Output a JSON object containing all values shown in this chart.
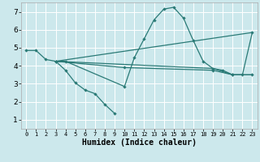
{
  "xlabel": "Humidex (Indice chaleur)",
  "bg_color": "#cce8ec",
  "grid_color": "#ffffff",
  "line_color": "#2a7a76",
  "xlim": [
    -0.5,
    23.5
  ],
  "ylim": [
    0.5,
    7.5
  ],
  "xticks": [
    0,
    1,
    2,
    3,
    4,
    5,
    6,
    7,
    8,
    9,
    10,
    11,
    12,
    13,
    14,
    15,
    16,
    17,
    18,
    19,
    20,
    21,
    22,
    23
  ],
  "yticks": [
    1,
    2,
    3,
    4,
    5,
    6,
    7
  ],
  "series": [
    {
      "x": [
        0,
        1,
        2,
        3,
        4,
        5,
        6,
        7,
        8,
        9
      ],
      "y": [
        4.85,
        4.85,
        4.35,
        4.25,
        3.75,
        3.05,
        2.65,
        2.45,
        1.85,
        1.35
      ],
      "markers": true
    },
    {
      "x": [
        3,
        4,
        10,
        11,
        12,
        13,
        14,
        15,
        16,
        17,
        18,
        19,
        20,
        21,
        22,
        23
      ],
      "y": [
        4.25,
        4.25,
        2.85,
        4.45,
        5.5,
        6.55,
        7.15,
        7.25,
        6.65,
        5.4,
        4.25,
        3.85,
        3.75,
        3.5,
        3.5,
        5.85
      ],
      "markers": true
    },
    {
      "x": [
        3,
        23
      ],
      "y": [
        4.25,
        5.85
      ],
      "markers": false
    },
    {
      "x": [
        3,
        10,
        19,
        21,
        23
      ],
      "y": [
        4.25,
        3.9,
        3.75,
        3.5,
        3.5
      ],
      "markers": true
    },
    {
      "x": [
        3,
        19,
        21,
        23
      ],
      "y": [
        4.25,
        3.85,
        3.5,
        3.5
      ],
      "markers": false
    }
  ]
}
